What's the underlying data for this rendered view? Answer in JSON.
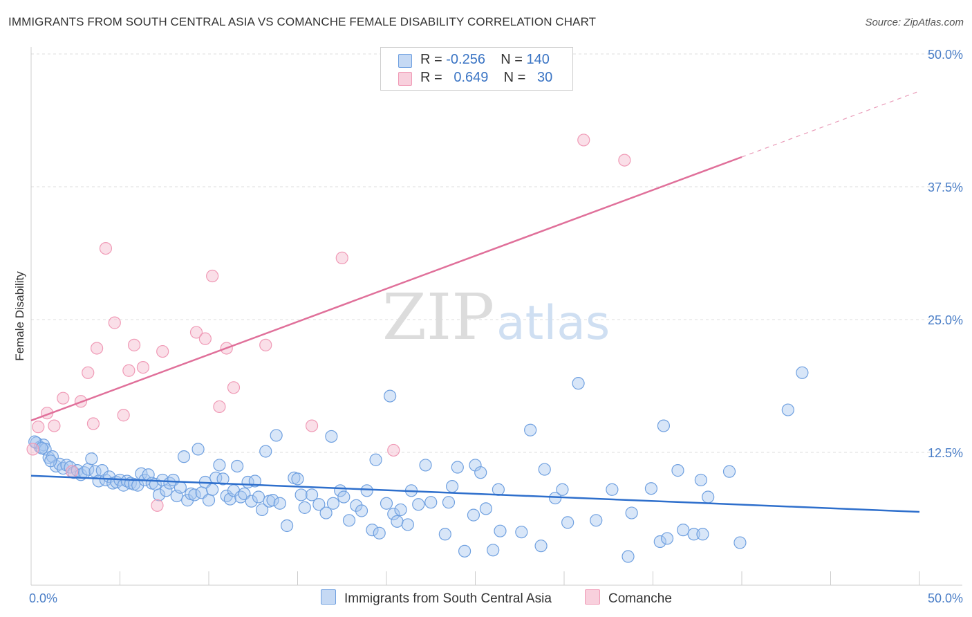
{
  "title": "IMMIGRANTS FROM SOUTH CENTRAL ASIA VS COMANCHE FEMALE DISABILITY CORRELATION CHART",
  "source": "Source: ZipAtlas.com",
  "watermark": {
    "zip": "ZIP",
    "atlas": "atlas"
  },
  "legend": {
    "rows": [
      {
        "r_label": "R =",
        "r_value": "-0.256",
        "n_label": "N =",
        "n_value": "140",
        "color": "#a9c8f0"
      },
      {
        "r_label": "R =",
        "r_value": "0.649",
        "n_label": "N =",
        "n_value": "30",
        "color": "#f5b8cc"
      }
    ]
  },
  "bottom_legend": [
    {
      "label": "Immigrants from South Central Asia",
      "color": "#a9c8f0"
    },
    {
      "label": "Comanche",
      "color": "#f5b8cc"
    }
  ],
  "chart_data": {
    "type": "scatter",
    "ylabel": "Female Disability",
    "xlim": [
      0,
      50
    ],
    "ylim": [
      0,
      50
    ],
    "y_ticks": [
      {
        "value": 12.5,
        "label": "12.5%"
      },
      {
        "value": 25,
        "label": "25.0%"
      },
      {
        "value": 37.5,
        "label": "37.5%"
      },
      {
        "value": 50,
        "label": "50.0%"
      }
    ],
    "x_tick_labels": [
      {
        "value": 0,
        "label": "0.0%"
      },
      {
        "value": 50,
        "label": "50.0%"
      }
    ],
    "grid": "horizontal dashed",
    "legend_position": "top-center",
    "series": [
      {
        "name": "Immigrants from South Central Asia",
        "color": "#6fa0e0",
        "fill": "#a9c8f0",
        "trend": {
          "x": [
            0,
            50
          ],
          "y": [
            10.3,
            6.9
          ],
          "color": "#2e6fcc"
        },
        "points": [
          [
            0.3,
            13.4
          ],
          [
            0.5,
            13.0
          ],
          [
            0.7,
            13.2
          ],
          [
            0.8,
            12.8
          ],
          [
            1.0,
            12.0
          ],
          [
            1.2,
            12.1
          ],
          [
            1.4,
            11.2
          ],
          [
            1.6,
            11.4
          ],
          [
            1.8,
            11.0
          ],
          [
            2.0,
            11.3
          ],
          [
            2.2,
            11.1
          ],
          [
            2.4,
            10.6
          ],
          [
            2.6,
            10.8
          ],
          [
            2.8,
            10.4
          ],
          [
            3.0,
            10.6
          ],
          [
            3.2,
            10.9
          ],
          [
            3.4,
            11.9
          ],
          [
            3.6,
            10.7
          ],
          [
            3.8,
            9.8
          ],
          [
            4.0,
            10.8
          ],
          [
            4.2,
            9.9
          ],
          [
            4.4,
            10.2
          ],
          [
            4.6,
            9.6
          ],
          [
            4.8,
            9.7
          ],
          [
            5.0,
            9.9
          ],
          [
            5.2,
            9.4
          ],
          [
            5.4,
            9.8
          ],
          [
            5.6,
            9.6
          ],
          [
            5.8,
            9.5
          ],
          [
            6.0,
            9.4
          ],
          [
            6.2,
            10.5
          ],
          [
            6.4,
            9.9
          ],
          [
            6.6,
            10.4
          ],
          [
            6.8,
            9.6
          ],
          [
            7.0,
            9.5
          ],
          [
            7.2,
            8.5
          ],
          [
            7.4,
            9.9
          ],
          [
            7.6,
            8.9
          ],
          [
            7.8,
            9.6
          ],
          [
            8.0,
            9.9
          ],
          [
            8.2,
            8.4
          ],
          [
            8.4,
            9.2
          ],
          [
            8.6,
            12.1
          ],
          [
            8.8,
            8.0
          ],
          [
            9.0,
            8.6
          ],
          [
            9.2,
            8.5
          ],
          [
            9.4,
            12.8
          ],
          [
            9.6,
            8.7
          ],
          [
            9.8,
            9.7
          ],
          [
            10.0,
            8.0
          ],
          [
            10.2,
            9.0
          ],
          [
            10.4,
            10.1
          ],
          [
            10.6,
            11.3
          ],
          [
            10.8,
            10.0
          ],
          [
            11.0,
            8.4
          ],
          [
            11.2,
            8.1
          ],
          [
            11.4,
            8.9
          ],
          [
            11.6,
            11.2
          ],
          [
            11.8,
            8.3
          ],
          [
            12.0,
            8.6
          ],
          [
            12.2,
            9.7
          ],
          [
            12.4,
            7.9
          ],
          [
            12.6,
            9.8
          ],
          [
            12.8,
            8.3
          ],
          [
            13.0,
            7.1
          ],
          [
            13.2,
            12.6
          ],
          [
            13.4,
            7.9
          ],
          [
            13.6,
            8.0
          ],
          [
            13.8,
            14.1
          ],
          [
            14.0,
            7.7
          ],
          [
            14.4,
            5.6
          ],
          [
            14.8,
            10.1
          ],
          [
            15.0,
            10.0
          ],
          [
            15.2,
            8.5
          ],
          [
            15.4,
            7.3
          ],
          [
            15.8,
            8.5
          ],
          [
            16.2,
            7.6
          ],
          [
            16.6,
            6.8
          ],
          [
            16.9,
            14.0
          ],
          [
            17.0,
            7.7
          ],
          [
            17.4,
            8.9
          ],
          [
            17.6,
            8.3
          ],
          [
            17.9,
            6.1
          ],
          [
            18.3,
            7.5
          ],
          [
            18.6,
            7.0
          ],
          [
            18.9,
            8.9
          ],
          [
            19.2,
            5.2
          ],
          [
            19.4,
            11.8
          ],
          [
            19.6,
            4.9
          ],
          [
            20.0,
            7.7
          ],
          [
            20.2,
            17.8
          ],
          [
            20.4,
            6.7
          ],
          [
            20.6,
            6.0
          ],
          [
            20.8,
            7.1
          ],
          [
            21.2,
            5.7
          ],
          [
            21.4,
            8.9
          ],
          [
            21.8,
            7.6
          ],
          [
            22.2,
            11.3
          ],
          [
            22.5,
            7.8
          ],
          [
            23.3,
            4.8
          ],
          [
            23.5,
            7.8
          ],
          [
            23.7,
            9.3
          ],
          [
            24.0,
            11.1
          ],
          [
            24.4,
            3.2
          ],
          [
            24.9,
            6.6
          ],
          [
            25.0,
            11.3
          ],
          [
            25.3,
            10.6
          ],
          [
            25.6,
            7.2
          ],
          [
            26.0,
            3.3
          ],
          [
            26.3,
            9.0
          ],
          [
            26.4,
            5.1
          ],
          [
            27.6,
            5.0
          ],
          [
            28.1,
            14.6
          ],
          [
            28.7,
            3.7
          ],
          [
            28.9,
            10.9
          ],
          [
            29.5,
            8.2
          ],
          [
            29.9,
            9.0
          ],
          [
            30.2,
            5.9
          ],
          [
            30.8,
            19.0
          ],
          [
            31.8,
            6.1
          ],
          [
            32.7,
            9.0
          ],
          [
            33.6,
            2.7
          ],
          [
            33.8,
            6.8
          ],
          [
            34.9,
            9.1
          ],
          [
            35.6,
            15.0
          ],
          [
            35.4,
            4.1
          ],
          [
            35.8,
            4.4
          ],
          [
            36.4,
            10.8
          ],
          [
            36.7,
            5.2
          ],
          [
            37.3,
            4.8
          ],
          [
            37.7,
            9.9
          ],
          [
            37.8,
            4.8
          ],
          [
            38.1,
            8.3
          ],
          [
            39.3,
            10.7
          ],
          [
            39.9,
            4.0
          ],
          [
            42.6,
            16.5
          ],
          [
            43.4,
            20.0
          ],
          [
            0.2,
            13.5
          ],
          [
            0.6,
            12.9
          ],
          [
            1.1,
            11.7
          ]
        ]
      },
      {
        "name": "Comanche",
        "color": "#f09ab6",
        "fill": "#f5b8cc",
        "trend": {
          "x": [
            0,
            40
          ],
          "y": [
            15.5,
            40.3
          ],
          "dashed_to": [
            50,
            46.5
          ],
          "color": "#e0709a"
        },
        "points": [
          [
            0.1,
            12.8
          ],
          [
            0.4,
            14.9
          ],
          [
            0.9,
            16.2
          ],
          [
            1.3,
            15.0
          ],
          [
            1.8,
            17.6
          ],
          [
            2.3,
            10.7
          ],
          [
            2.8,
            17.3
          ],
          [
            3.2,
            20.0
          ],
          [
            3.5,
            15.2
          ],
          [
            3.7,
            22.3
          ],
          [
            4.2,
            31.7
          ],
          [
            4.7,
            24.7
          ],
          [
            5.2,
            16.0
          ],
          [
            5.5,
            20.2
          ],
          [
            5.8,
            22.6
          ],
          [
            6.3,
            20.5
          ],
          [
            7.1,
            7.5
          ],
          [
            7.4,
            22.0
          ],
          [
            9.3,
            23.8
          ],
          [
            9.8,
            23.2
          ],
          [
            10.2,
            29.1
          ],
          [
            10.6,
            16.8
          ],
          [
            11.0,
            22.3
          ],
          [
            11.4,
            18.6
          ],
          [
            13.2,
            22.6
          ],
          [
            15.8,
            15.0
          ],
          [
            17.5,
            30.8
          ],
          [
            20.4,
            12.7
          ],
          [
            31.1,
            41.9
          ],
          [
            33.4,
            40.0
          ]
        ]
      }
    ]
  }
}
